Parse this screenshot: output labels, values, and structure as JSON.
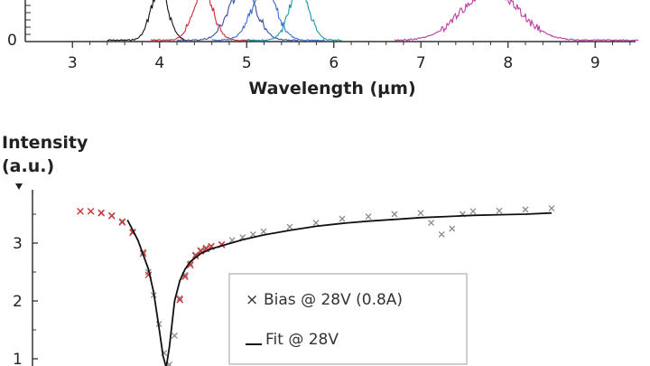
{
  "chart_data": [
    {
      "type": "line",
      "xlabel": "Wavelength (µm)",
      "xlim": [
        2.5,
        9.5
      ],
      "x_ticks": [
        "3",
        "4",
        "5",
        "6",
        "7",
        "8",
        "9"
      ],
      "y_ticks": [
        "0"
      ],
      "series": [
        {
          "color": "#111111",
          "peak_x": 4.0,
          "width": 0.14,
          "start": 3.4,
          "end": 4.3
        },
        {
          "color": "#d02a3a",
          "peak_x": 4.5,
          "width": 0.16,
          "start": 3.9,
          "end": 5.1
        },
        {
          "color": "#3a4fa0",
          "peak_x": 4.95,
          "width": 0.22,
          "start": 4.2,
          "end": 5.6
        },
        {
          "color": "#3a6fd0",
          "peak_x": 5.2,
          "width": 0.2,
          "start": 4.6,
          "end": 5.9
        },
        {
          "color": "#1a9aa8",
          "peak_x": 5.6,
          "width": 0.16,
          "start": 5.0,
          "end": 6.1
        },
        {
          "color": "#c03aa8",
          "peak_x": 7.8,
          "width": 0.45,
          "start": 6.7,
          "end": 9.5
        }
      ]
    },
    {
      "type": "scatter",
      "ylabel": "Intensity\n(a.u.)",
      "ylabel_lines": [
        "Intensity",
        "(a.u.)"
      ],
      "xlim": [
        0,
        100
      ],
      "ylim": [
        0.8,
        3.9
      ],
      "y_ticks": [
        "1",
        "2",
        "3"
      ],
      "legend": {
        "placement": "bottom-center",
        "entries": [
          {
            "marker": "×",
            "label": "Bias @ 28V (0.8A)"
          },
          {
            "marker": "line",
            "label": "Fit @ 28V"
          }
        ]
      },
      "colors": {
        "bias": "#8a8a8a",
        "bias_highlight": "#d03030",
        "fit": "#111111"
      },
      "bias_points": {
        "x": [
          5,
          7,
          9,
          11,
          13,
          15,
          17,
          18,
          19,
          20,
          21,
          22,
          23,
          24,
          25,
          26,
          27,
          28,
          29,
          30,
          32,
          34,
          36,
          38,
          40,
          45,
          50,
          55,
          60,
          65,
          70,
          72,
          74,
          76,
          78,
          80,
          85,
          90,
          95
        ],
        "y": [
          3.55,
          3.55,
          3.53,
          3.48,
          3.38,
          3.2,
          2.85,
          2.5,
          2.1,
          1.6,
          1.1,
          0.9,
          1.4,
          2.05,
          2.45,
          2.65,
          2.8,
          2.88,
          2.92,
          2.95,
          2.98,
          3.05,
          3.1,
          3.15,
          3.2,
          3.28,
          3.35,
          3.42,
          3.46,
          3.5,
          3.52,
          3.35,
          3.15,
          3.25,
          3.5,
          3.55,
          3.56,
          3.58,
          3.6
        ]
      },
      "highlight_points": {
        "x": [
          5,
          7,
          9,
          11,
          13,
          15,
          17,
          18,
          24,
          25,
          26,
          27,
          28,
          29,
          30,
          32
        ],
        "y": [
          3.55,
          3.55,
          3.52,
          3.47,
          3.36,
          3.18,
          2.82,
          2.45,
          2.02,
          2.42,
          2.62,
          2.78,
          2.86,
          2.9,
          2.94,
          2.97
        ]
      },
      "fit_line": {
        "x": [
          14,
          16,
          18,
          19,
          20,
          20.8,
          21.4,
          22,
          22.5,
          23,
          24,
          25,
          26,
          28,
          30,
          33,
          36,
          40,
          45,
          50,
          55,
          60,
          65,
          70,
          75,
          80,
          85,
          90,
          95
        ],
        "y": [
          3.4,
          3.05,
          2.55,
          2.15,
          1.55,
          1.05,
          0.85,
          1.2,
          1.6,
          2.0,
          2.35,
          2.55,
          2.68,
          2.82,
          2.9,
          2.98,
          3.06,
          3.14,
          3.22,
          3.29,
          3.34,
          3.38,
          3.41,
          3.44,
          3.46,
          3.48,
          3.49,
          3.5,
          3.52
        ]
      }
    }
  ]
}
